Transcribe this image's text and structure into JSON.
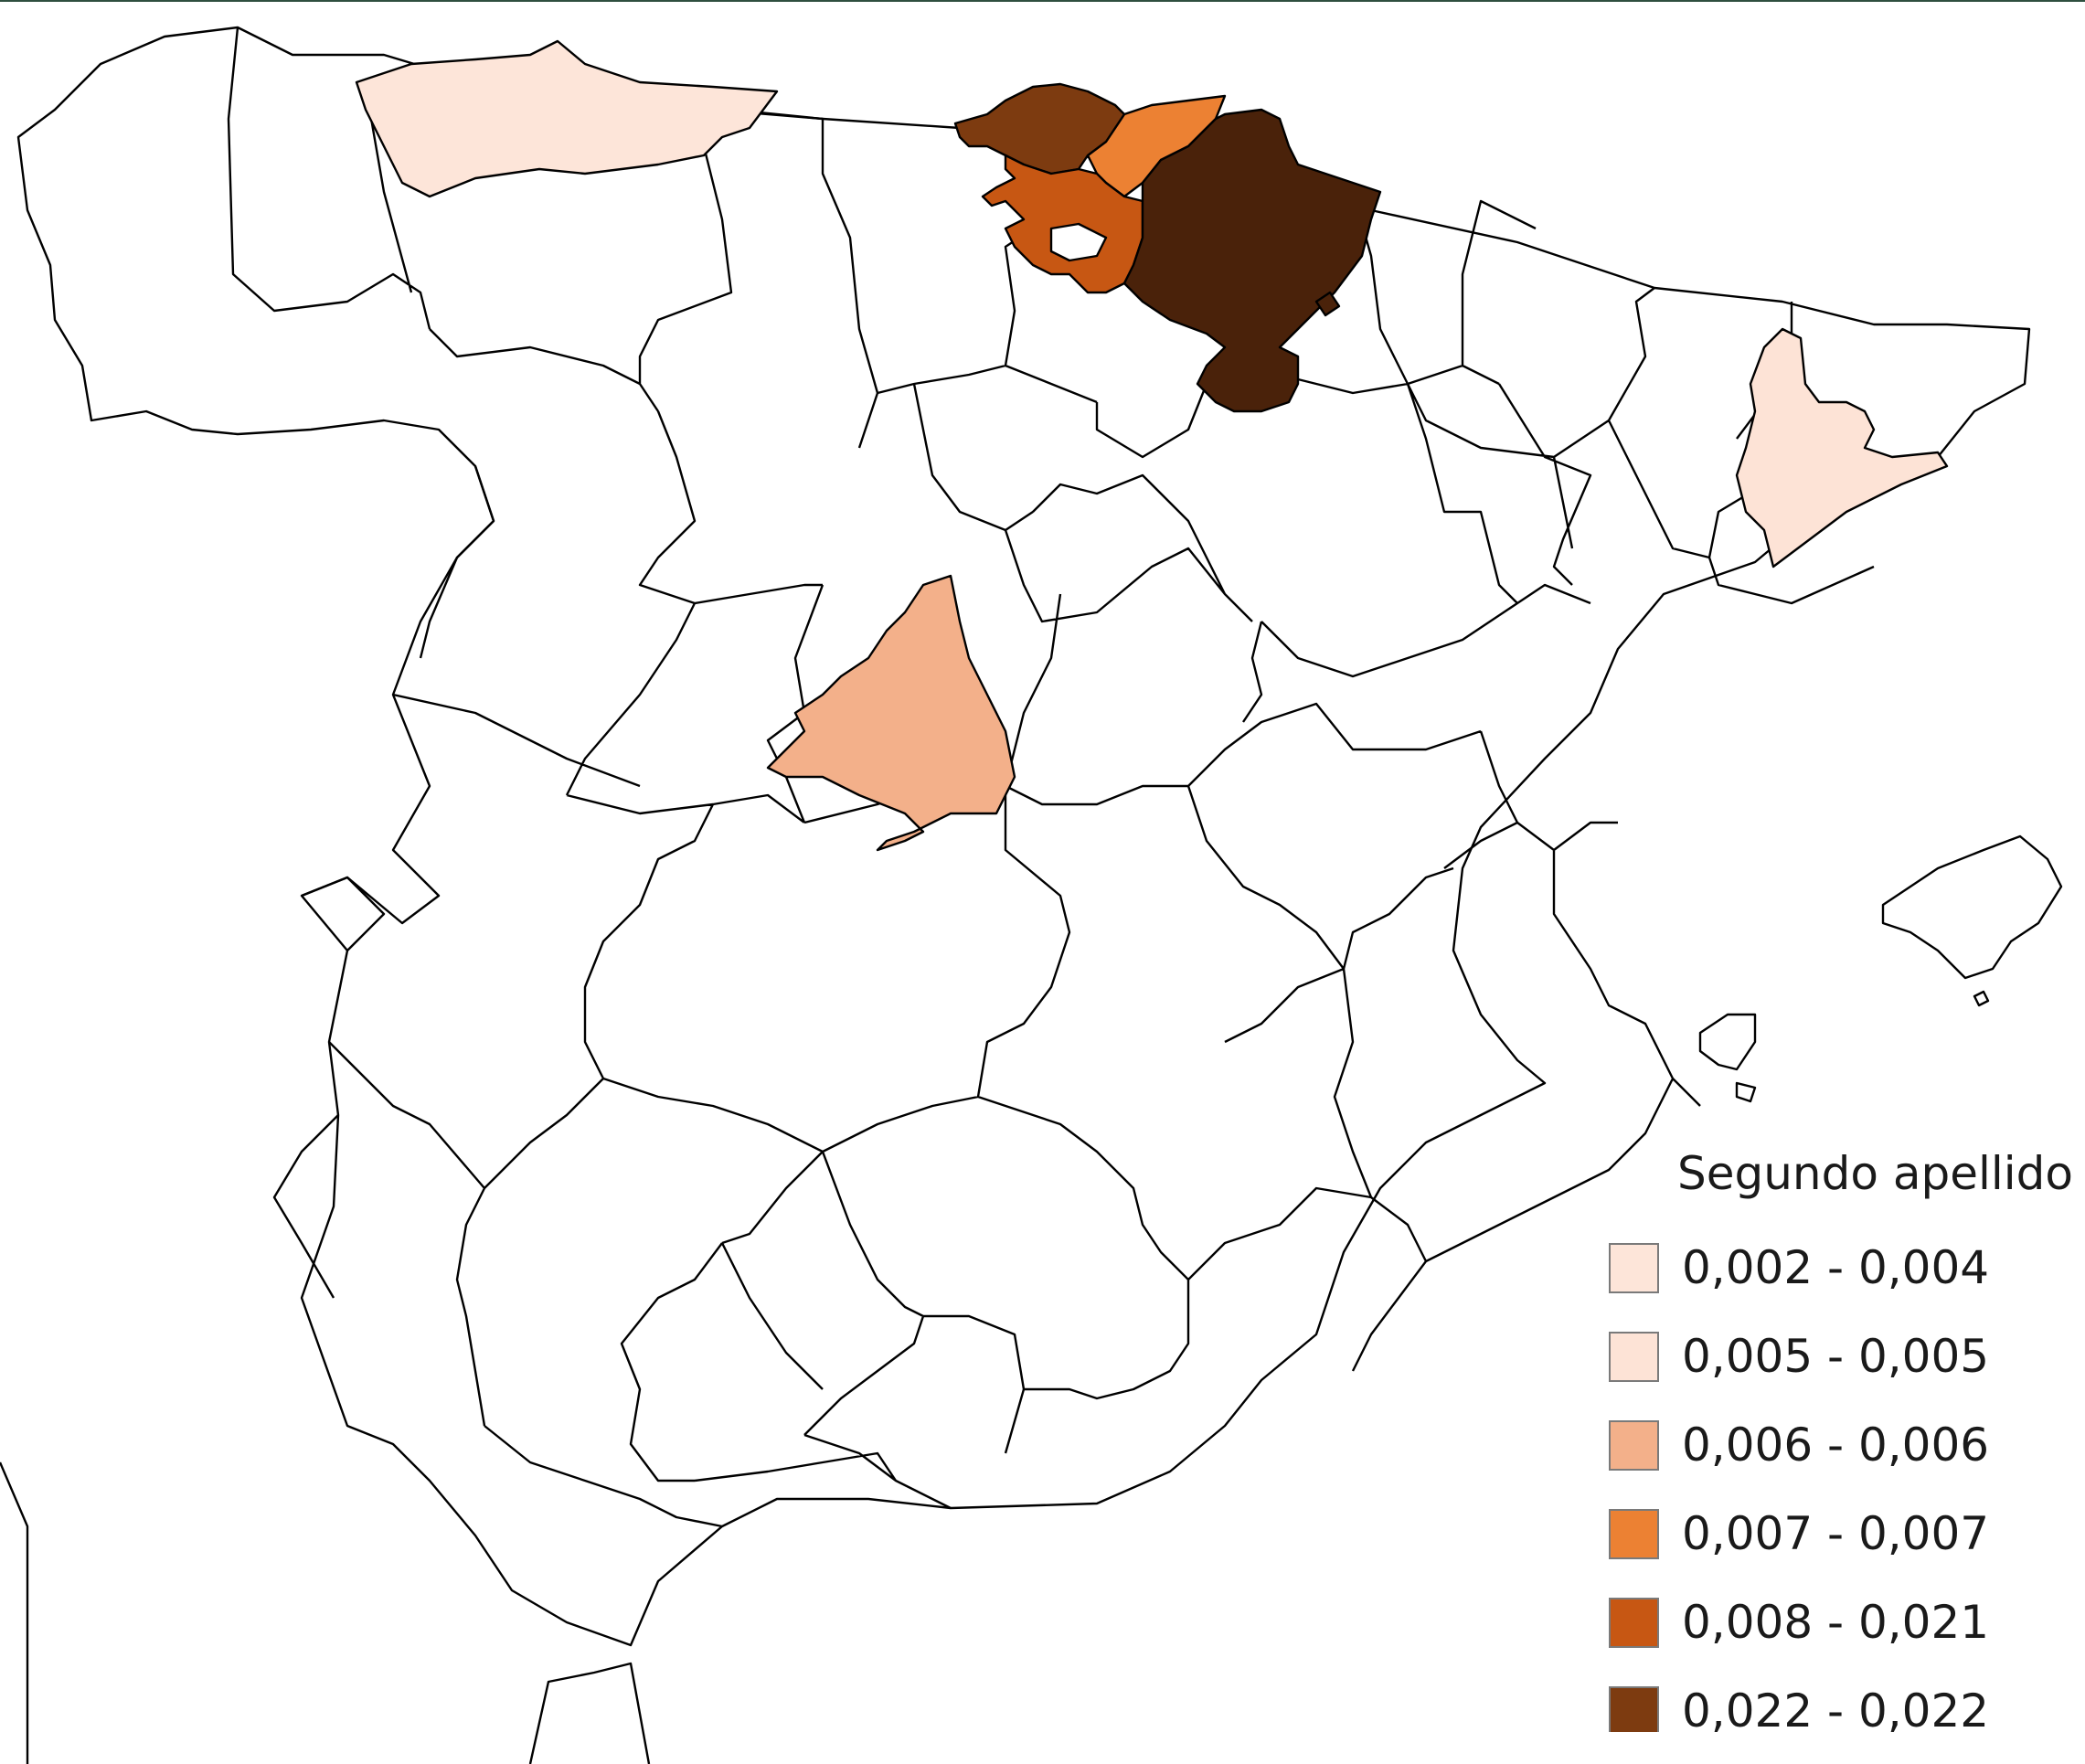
{
  "legend": {
    "title": "Segundo apellido (",
    "classes": [
      {
        "label": "0,002 - 0,004",
        "color": "#fde5d9"
      },
      {
        "label": "0,005 - 0,005",
        "color": "#fde3d6"
      },
      {
        "label": "0,006 - 0,006",
        "color": "#f3b08a"
      },
      {
        "label": "0,007 - 0,007",
        "color": "#ec8133"
      },
      {
        "label": "0,008 - 0,021",
        "color": "#c75713"
      },
      {
        "label": "0,022 - 0,022",
        "color": "#7d3b10"
      }
    ]
  },
  "colors": {
    "no_data": "#ffffff",
    "navarra": "#4a220a",
    "border": "#000000"
  }
}
